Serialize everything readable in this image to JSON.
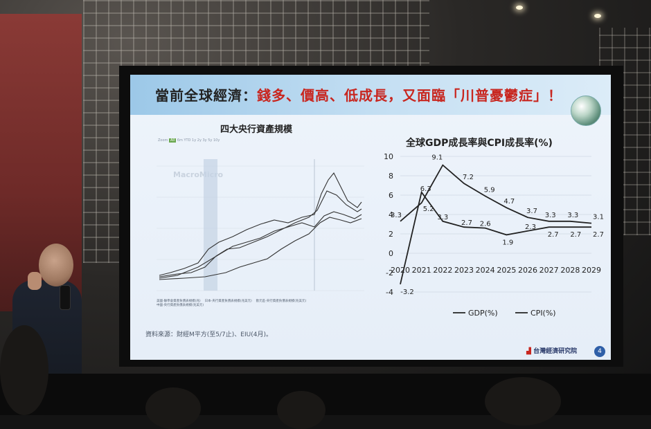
{
  "slide": {
    "title_prefix": "當前全球經濟：",
    "title_highlight": "錢多、價高、低成長，又面臨「川普憂鬱症」！",
    "left_chart_title": "四大央行資產規模",
    "right_chart_title": "全球GDP成長率與CPI成長率(%)",
    "source_note": "資料來源：財經M平方(至5/7止)、EIU(4月)。",
    "institute": "台灣經濟研究院",
    "page_number": "4",
    "mm_brand": "MacroMicro",
    "zoom_label": "Zoom",
    "zoom_options": [
      "All",
      "6m",
      "YTD",
      "1y",
      "2y",
      "3y",
      "5y",
      "10y"
    ],
    "mm_legend": [
      "美國-聯準會資產負債表規模(兆)",
      "日本-央行資產負債表規模(兆美元)",
      "歐元區-央行資產負債表規模(兆美元)",
      "中國-央行資產負債表規模(兆美元)"
    ]
  },
  "chart_data": {
    "type": "line",
    "title": "全球GDP成長率與CPI成長率(%)",
    "categories": [
      "2020",
      "2021",
      "2022",
      "2023",
      "2024",
      "2025",
      "2026",
      "2027",
      "2028",
      "2029"
    ],
    "ylim": [
      -4,
      10
    ],
    "y_ticks": [
      "10",
      "8",
      "6",
      "4",
      "2",
      "0",
      "-2",
      "-4"
    ],
    "grid": true,
    "legend_position": "bottom",
    "series": [
      {
        "name": "GDP(%)",
        "values": [
          -3.2,
          6.3,
          3.3,
          2.7,
          2.6,
          1.9,
          2.3,
          2.7,
          2.7,
          2.7
        ],
        "labels": [
          "-3.2",
          "6.3",
          "3.3",
          "2.7",
          "2.6",
          "1.9",
          "2.3",
          "2.7",
          "2.7",
          "2.7"
        ]
      },
      {
        "name": "CPI(%)",
        "values": [
          3.3,
          5.2,
          9.1,
          7.2,
          5.9,
          4.7,
          3.7,
          3.3,
          3.3,
          3.1
        ],
        "labels": [
          "3.3",
          "5.2",
          "9.1",
          "7.2",
          "5.9",
          "4.7",
          "3.7",
          "3.3",
          "3.3",
          "3.1"
        ]
      }
    ]
  },
  "colors": {
    "title_highlight": "#c8261f",
    "line": "#222222"
  }
}
